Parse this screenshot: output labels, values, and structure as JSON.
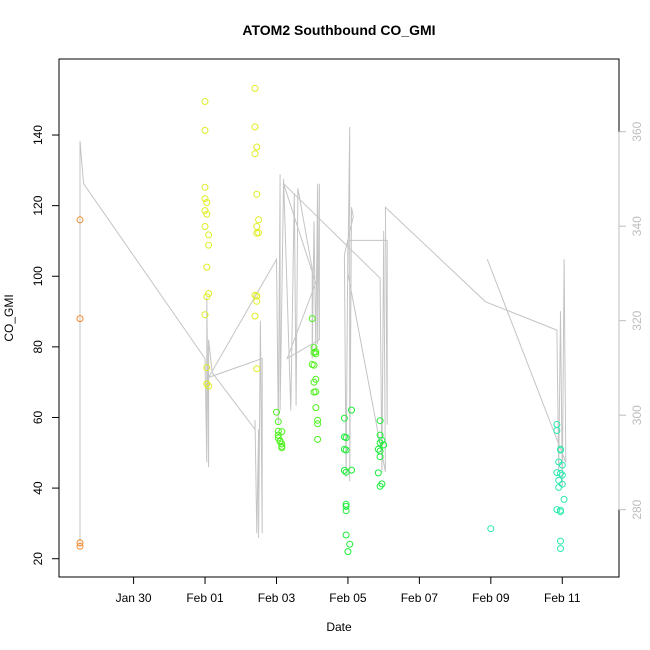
{
  "chart_data": {
    "type": "scatter",
    "title": "ATOM2 Southbound CO_GMI",
    "xlabel": "Date",
    "ylabel": "CO_GMI",
    "x_ticks": [
      "Jan 30",
      "Feb 01",
      "Feb 03",
      "Feb 05",
      "Feb 07",
      "Feb 09",
      "Feb 11"
    ],
    "x_tick_days": [
      30,
      32,
      34,
      36,
      38,
      40,
      42
    ],
    "xlim_days": [
      28.5,
      43.0
    ],
    "ylim": [
      18.5,
      157
    ],
    "y_ticks": [
      20,
      40,
      60,
      80,
      100,
      120,
      140
    ],
    "y2lim": [
      268.5,
      372
    ],
    "y2_ticks": [
      280,
      300,
      320,
      340,
      360
    ],
    "y2_color": "#bdbdbd",
    "grid": false,
    "series": [
      {
        "color": "#f58a2e",
        "points": [
          [
            28.5,
            116
          ],
          [
            28.5,
            88
          ],
          [
            28.5,
            24.5
          ],
          [
            28.5,
            23.5
          ]
        ]
      },
      {
        "color": "#e0ed22",
        "points": [
          [
            32.0,
            149.5
          ],
          [
            32.0,
            141.3
          ],
          [
            32.0,
            125.2
          ],
          [
            32.0,
            122.0
          ],
          [
            32.05,
            120.9
          ],
          [
            32.0,
            118.6
          ],
          [
            32.05,
            117.6
          ],
          [
            32.0,
            114.1
          ],
          [
            32.1,
            111.7
          ],
          [
            32.1,
            108.8
          ],
          [
            32.05,
            102.6
          ],
          [
            32.1,
            95.1
          ],
          [
            32.05,
            94.2
          ],
          [
            32.0,
            89.1
          ],
          [
            32.05,
            74.1
          ],
          [
            32.05,
            69.5
          ],
          [
            32.1,
            68.9
          ],
          [
            33.4,
            153.2
          ],
          [
            33.4,
            142.3
          ],
          [
            33.45,
            136.6
          ],
          [
            33.4,
            134.7
          ],
          [
            33.45,
            123.2
          ],
          [
            33.5,
            116.0
          ],
          [
            33.45,
            114.1
          ],
          [
            33.5,
            112.3
          ],
          [
            33.45,
            112.2
          ],
          [
            33.4,
            94.6
          ],
          [
            33.45,
            94.4
          ],
          [
            33.45,
            92.9
          ],
          [
            33.4,
            88.7
          ],
          [
            33.45,
            73.8
          ]
        ]
      },
      {
        "color": "#4ef21e",
        "points": [
          [
            34.0,
            61.5
          ],
          [
            34.05,
            58.8
          ],
          [
            34.05,
            56.1
          ],
          [
            34.15,
            56.0
          ],
          [
            34.05,
            55.0
          ],
          [
            34.05,
            54.2
          ],
          [
            34.1,
            53.4
          ],
          [
            34.1,
            53.2
          ],
          [
            34.15,
            52.5
          ],
          [
            34.15,
            51.8
          ],
          [
            34.15,
            51.4
          ],
          [
            35.0,
            88.0
          ],
          [
            35.05,
            79.8
          ],
          [
            35.1,
            78.6
          ],
          [
            35.05,
            78.4
          ],
          [
            35.1,
            78.0
          ],
          [
            35.0,
            75.0
          ],
          [
            35.05,
            74.8
          ],
          [
            35.1,
            70.8
          ],
          [
            35.05,
            70.0
          ],
          [
            35.1,
            67.3
          ],
          [
            35.05,
            67.2
          ],
          [
            35.1,
            62.8
          ],
          [
            35.15,
            59.2
          ],
          [
            35.15,
            58.2
          ],
          [
            35.15,
            53.8
          ]
        ]
      },
      {
        "color": "#1dec3a",
        "points": [
          [
            35.9,
            59.8
          ],
          [
            35.9,
            54.5
          ],
          [
            35.95,
            54.3
          ],
          [
            35.9,
            51.0
          ],
          [
            35.95,
            50.8
          ],
          [
            35.9,
            45.0
          ],
          [
            35.95,
            44.5
          ],
          [
            36.1,
            45.1
          ],
          [
            35.95,
            35.4
          ],
          [
            35.95,
            34.8
          ],
          [
            35.95,
            33.6
          ],
          [
            35.95,
            26.7
          ],
          [
            36.05,
            24.1
          ],
          [
            36.0,
            22.0
          ],
          [
            36.1,
            62.1
          ],
          [
            36.9,
            59.1
          ],
          [
            36.9,
            55.0
          ],
          [
            36.95,
            53.5
          ],
          [
            36.9,
            52.8
          ],
          [
            37.0,
            52.2
          ],
          [
            36.85,
            51.0
          ],
          [
            36.9,
            50.5
          ],
          [
            36.9,
            48.9
          ],
          [
            36.85,
            44.3
          ],
          [
            36.95,
            41.2
          ],
          [
            36.9,
            40.5
          ]
        ]
      },
      {
        "color": "#29eab0",
        "points": [
          [
            40.0,
            28.5
          ],
          [
            41.85,
            58.0
          ],
          [
            41.85,
            56.3
          ],
          [
            41.95,
            51.0
          ],
          [
            41.95,
            50.8
          ],
          [
            41.9,
            47.4
          ],
          [
            42.0,
            46.5
          ],
          [
            41.85,
            44.4
          ],
          [
            41.95,
            44.2
          ],
          [
            42.0,
            43.7
          ],
          [
            41.9,
            42.2
          ],
          [
            42.0,
            41.1
          ],
          [
            41.9,
            40.2
          ],
          [
            41.85,
            33.9
          ],
          [
            41.95,
            33.7
          ],
          [
            41.95,
            33.3
          ],
          [
            42.05,
            36.8
          ],
          [
            41.95,
            25.0
          ],
          [
            41.95,
            22.9
          ]
        ]
      }
    ],
    "y2_line": [
      [
        28.5,
        272
      ],
      [
        28.5,
        358
      ],
      [
        28.6,
        349
      ],
      [
        32.0,
        312
      ],
      [
        32.05,
        290
      ],
      [
        32.05,
        325
      ],
      [
        32.1,
        289
      ],
      [
        32.1,
        316
      ],
      [
        32.2,
        309
      ],
      [
        33.4,
        297
      ],
      [
        33.4,
        299
      ],
      [
        33.45,
        275
      ],
      [
        33.5,
        297
      ],
      [
        33.5,
        274
      ],
      [
        33.55,
        320
      ],
      [
        33.6,
        275
      ],
      [
        33.6,
        312
      ],
      [
        32.1,
        308
      ],
      [
        34.0,
        333
      ],
      [
        34.05,
        298
      ],
      [
        34.1,
        351
      ],
      [
        34.1,
        301
      ],
      [
        34.2,
        350
      ],
      [
        34.4,
        301
      ],
      [
        34.5,
        347
      ],
      [
        34.55,
        302
      ],
      [
        34.6,
        348
      ],
      [
        35.0,
        331
      ],
      [
        35.0,
        312
      ],
      [
        35.05,
        341
      ],
      [
        35.1,
        314
      ],
      [
        35.15,
        349
      ],
      [
        35.15,
        315
      ],
      [
        35.2,
        349
      ],
      [
        35.2,
        316
      ],
      [
        34.3,
        312
      ],
      [
        35.1,
        328
      ],
      [
        34.2,
        349
      ],
      [
        36.9,
        329
      ],
      [
        36.95,
        288
      ],
      [
        37.0,
        339
      ],
      [
        37.05,
        288
      ],
      [
        36.0,
        330
      ],
      [
        36.05,
        361
      ],
      [
        36.05,
        286
      ],
      [
        36.1,
        344
      ],
      [
        36.15,
        342
      ],
      [
        35.9,
        334
      ],
      [
        35.95,
        287
      ],
      [
        36.0,
        337
      ],
      [
        37.1,
        337
      ],
      [
        37.1,
        298
      ],
      [
        37.05,
        344
      ],
      [
        39.85,
        324
      ],
      [
        41.85,
        318
      ],
      [
        41.9,
        288
      ],
      [
        41.95,
        322
      ],
      [
        42.0,
        285
      ],
      [
        42.05,
        333
      ],
      [
        42.1,
        290
      ],
      [
        39.9,
        333
      ]
    ]
  }
}
